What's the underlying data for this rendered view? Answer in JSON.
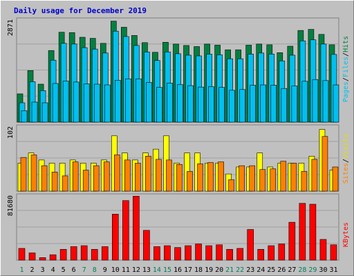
{
  "chart_data": {
    "type": "bar",
    "title": "Daily usage for December 2019",
    "categories": [
      "1",
      "2",
      "3",
      "4",
      "5",
      "6",
      "7",
      "8",
      "9",
      "10",
      "11",
      "12",
      "13",
      "14",
      "15",
      "16",
      "17",
      "18",
      "19",
      "20",
      "21",
      "22",
      "23",
      "24",
      "25",
      "26",
      "27",
      "28",
      "29",
      "30",
      "31"
    ],
    "weekend_days": [
      "1",
      "7",
      "8",
      "14",
      "15",
      "21",
      "22",
      "28",
      "29"
    ],
    "panels": [
      {
        "id": "hits",
        "ylabel_parts": [
          "Pages",
          "Files",
          "Hits"
        ],
        "max_label": "2871",
        "ylim": [
          0,
          2871
        ],
        "series": [
          {
            "name": "Hits",
            "color": "#008040",
            "values": [
              790,
              1440,
              1060,
              2000,
              2510,
              2500,
              2370,
              2340,
              2200,
              2820,
              2650,
              2420,
              2220,
              1950,
              2230,
              2180,
              2140,
              2110,
              2180,
              2150,
              2020,
              2020,
              2150,
              2180,
              2160,
              1940,
              2120,
              2560,
              2590,
              2450,
              2160
            ]
          },
          {
            "name": "Files",
            "color": "#00c0f0",
            "values": [
              540,
              1130,
              880,
              1730,
              2200,
              2180,
              2080,
              2040,
              1930,
              2540,
              2390,
              2140,
              1960,
              1720,
              1960,
              1910,
              1870,
              1850,
              1900,
              1880,
              1770,
              1770,
              1900,
              1930,
              1900,
              1710,
              1870,
              2270,
              2300,
              2180,
              1890
            ]
          },
          {
            "name": "Pages",
            "color": "#00c0f0",
            "values": [
              320,
              560,
              540,
              1080,
              1150,
              1120,
              1070,
              1060,
              1040,
              1170,
              1210,
              1210,
              1110,
              970,
              1090,
              1050,
              1020,
              980,
              990,
              970,
              890,
              910,
              1030,
              1040,
              1030,
              940,
              1010,
              1140,
              1190,
              1160,
              1040
            ]
          }
        ]
      },
      {
        "id": "visits",
        "ylabel_parts": [
          "Sites",
          "Visits"
        ],
        "max_label": "102",
        "ylim": [
          0,
          102
        ],
        "series": [
          {
            "name": "Visits",
            "color": "#ffff00",
            "values": [
              44,
              60,
              49,
              44,
              44,
              49,
              44,
              44,
              49,
              87,
              60,
              49,
              60,
              66,
              87,
              44,
              60,
              60,
              44,
              44,
              27,
              38,
              38,
              60,
              38,
              44,
              44,
              44,
              55,
              97,
              33
            ]
          },
          {
            "name": "Sites",
            "color": "#ff8000",
            "values": [
              53,
              57,
              40,
              30,
              24,
              46,
              33,
              40,
              46,
              57,
              49,
              44,
              55,
              50,
              49,
              42,
              31,
              43,
              45,
              46,
              18,
              40,
              40,
              34,
              35,
              47,
              44,
              31,
              50,
              86,
              38
            ]
          }
        ]
      },
      {
        "id": "kbytes",
        "ylabel_parts": [
          "KBytes"
        ],
        "max_label": "81680",
        "ylim": [
          0,
          81680
        ],
        "series": [
          {
            "name": "KBytes",
            "color": "#ff0000",
            "values": [
              14800,
              9100,
              3200,
              6800,
              13600,
              17000,
              18200,
              13600,
              17000,
              57900,
              75000,
              80500,
              37500,
              17000,
              18200,
              15900,
              18200,
              20400,
              18200,
              19300,
              13600,
              14800,
              38600,
              13600,
              18200,
              20400,
              47700,
              71500,
              70400,
              26100,
              19300
            ]
          }
        ]
      }
    ]
  }
}
